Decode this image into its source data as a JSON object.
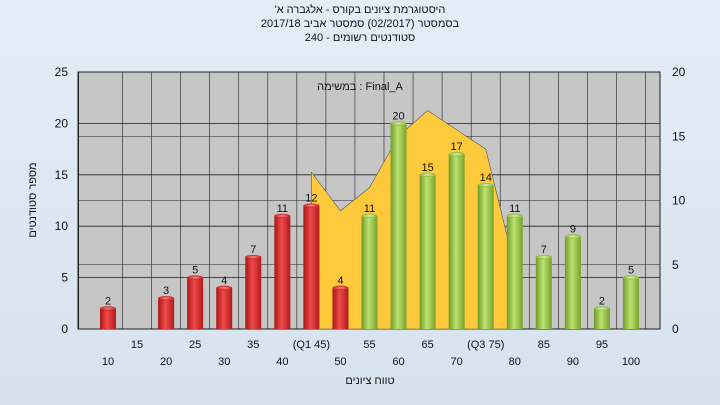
{
  "header": {
    "line1": "'היסטוגרמת ציונים בקורס - אלגברה א",
    "line2": "בסמסטר  (02/2017)  סמסטר אביב 2017/18",
    "line3": "סטודנטים רשומים - 240"
  },
  "colors": {
    "plot_bg": "#c6c6c6",
    "red_bar": "#d82a2a",
    "green_bar": "#92c13e",
    "area": "#ffc93c",
    "grid": "#222222"
  },
  "chart_data": {
    "type": "bar",
    "annotation": "במשימה : Final_A",
    "ylabel": "מספר סטודנטים",
    "xlabel": "טווח ציונים",
    "ylim": [
      0,
      25
    ],
    "y_ticks": [
      0,
      5,
      10,
      15,
      20,
      25
    ],
    "y2lim": [
      0,
      20
    ],
    "y2_ticks": [
      0,
      5,
      10,
      15,
      20
    ],
    "grid": true,
    "x_tick_labels_lower": [
      "10",
      "20",
      "30",
      "40",
      "50",
      "60",
      "70",
      "80",
      "90",
      "100"
    ],
    "x_tick_labels_upper": [
      "15",
      "25",
      "35",
      "(Q1 45)",
      "55",
      "65",
      "(Q3 75)",
      "85",
      "95"
    ],
    "bars": [
      {
        "bin": 10,
        "value": 2,
        "label": "2",
        "color": "red"
      },
      {
        "bin": 15,
        "value": 0,
        "label": "",
        "color": "red"
      },
      {
        "bin": 20,
        "value": 3,
        "label": "3",
        "color": "red"
      },
      {
        "bin": 25,
        "value": 5,
        "label": "5",
        "color": "red"
      },
      {
        "bin": 30,
        "value": 4,
        "label": "4",
        "color": "red"
      },
      {
        "bin": 35,
        "value": 7,
        "label": "7",
        "color": "red"
      },
      {
        "bin": 40,
        "value": 11,
        "label": "11",
        "color": "red"
      },
      {
        "bin": 45,
        "value": 12,
        "label": "12",
        "color": "red"
      },
      {
        "bin": 50,
        "value": 4,
        "label": "4",
        "color": "red"
      },
      {
        "bin": 55,
        "value": 11,
        "label": "11",
        "color": "green"
      },
      {
        "bin": 60,
        "value": 20,
        "label": "20",
        "color": "green"
      },
      {
        "bin": 65,
        "value": 15,
        "label": "15",
        "color": "green"
      },
      {
        "bin": 70,
        "value": 17,
        "label": "17",
        "color": "green"
      },
      {
        "bin": 75,
        "value": 14,
        "label": "14",
        "color": "green"
      },
      {
        "bin": 80,
        "value": 11,
        "label": "11",
        "color": "green"
      },
      {
        "bin": 85,
        "value": 7,
        "label": "7",
        "color": "green"
      },
      {
        "bin": 90,
        "value": 9,
        "label": "9",
        "color": "green"
      },
      {
        "bin": 95,
        "value": 2,
        "label": "2",
        "color": "green"
      },
      {
        "bin": 100,
        "value": 5,
        "label": "5",
        "color": "green"
      }
    ],
    "area": {
      "axis": "secondary",
      "points": [
        [
          45,
          12.2
        ],
        [
          50,
          9.2
        ],
        [
          55,
          11
        ],
        [
          60,
          15
        ],
        [
          65,
          17
        ],
        [
          70,
          15.5
        ],
        [
          75,
          14
        ],
        [
          80,
          4.8
        ]
      ]
    }
  }
}
